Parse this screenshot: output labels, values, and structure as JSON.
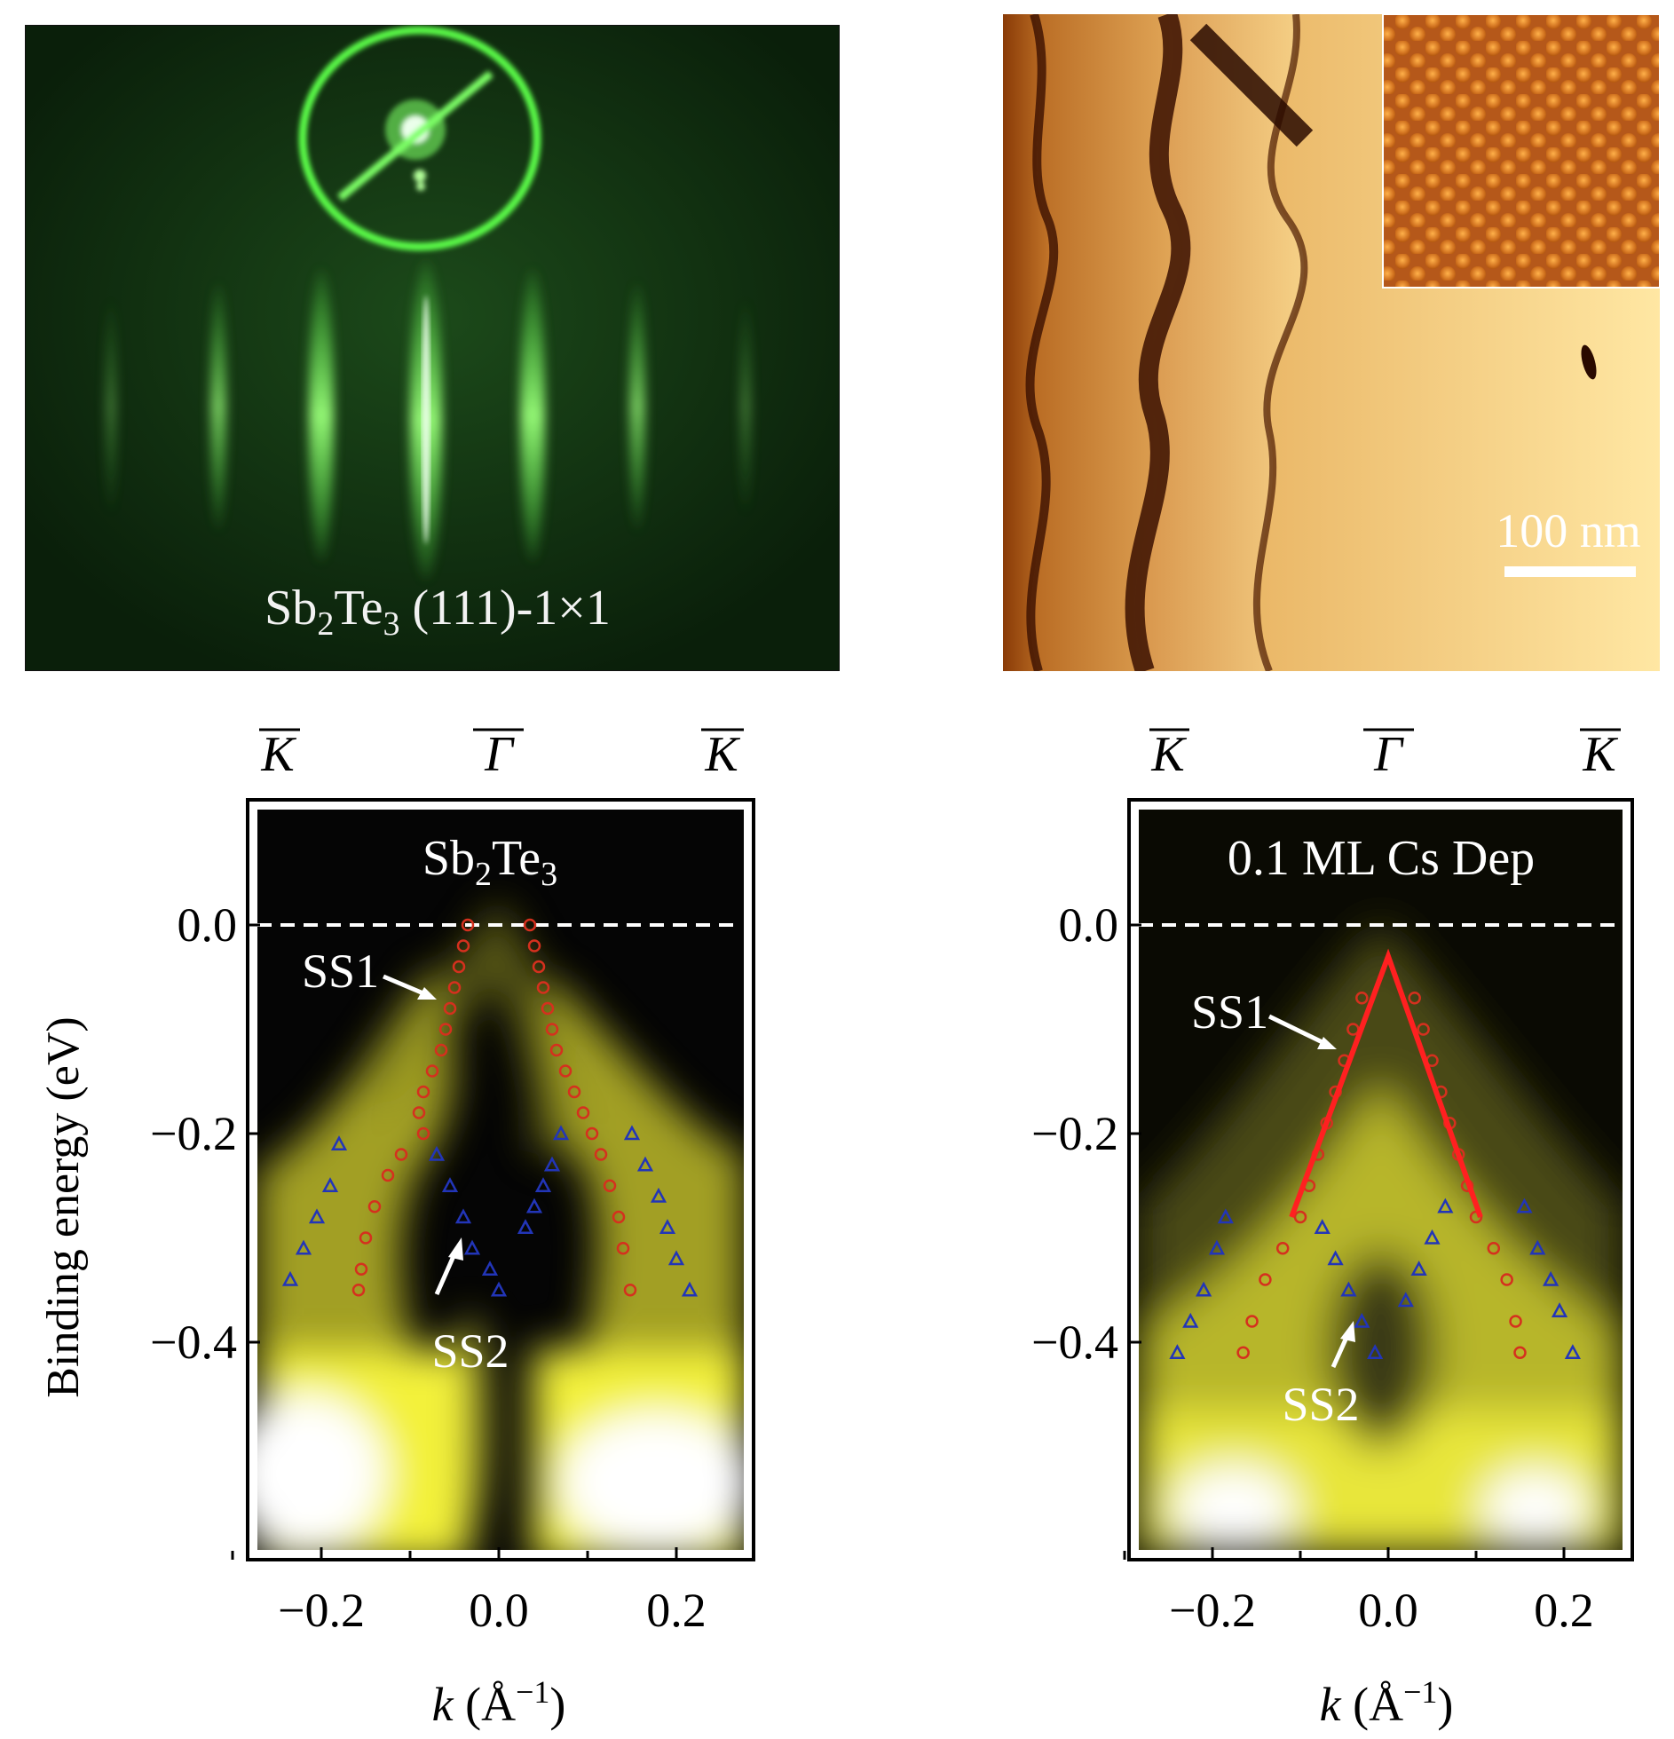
{
  "rheed": {
    "label_base": "Sb",
    "label_sub1": "2",
    "label_mid": "Te",
    "label_sub2": "3",
    "label_tail": " (111)-1×1"
  },
  "stm": {
    "scalebar_label": "100 nm"
  },
  "arpes_common": {
    "ylabel": "Binding energy (eV)",
    "xlabel_k": "k",
    "xlabel_units": " (Å",
    "xlabel_exp": "−1",
    "xlabel_close": ")",
    "kbar": "K",
    "gammabar": "Γ",
    "xticks": [
      "−0.2",
      "0.0",
      "0.2"
    ],
    "yticks": [
      "0.0",
      "−0.2",
      "−0.4"
    ],
    "ss1": "SS1",
    "ss2": "SS2"
  },
  "colors": {
    "rheed_bg": "#0e2a0e",
    "rheed_green": "#5cff4a",
    "stm_dark": "#3a0f00",
    "stm_mid": "#b5651d",
    "stm_light": "#ffe7a3",
    "arpes_dark": "#050505",
    "arpes_yellow": "#f3f13a",
    "ss1_color": "#d5301e",
    "ss2_color": "#2235b8",
    "line_color": "#ff2020"
  },
  "chart_data": [
    {
      "type": "scatter",
      "title": "Sb2Te3",
      "xlabel": "k (Å−1)",
      "ylabel": "Binding energy (eV)",
      "xlim": [
        -0.3,
        0.29
      ],
      "ylim": [
        -0.59,
        0.12
      ],
      "xticks": [
        -0.2,
        0.0,
        0.2
      ],
      "yticks": [
        0.0,
        -0.2,
        -0.4
      ],
      "fermi_level": 0.0,
      "series": [
        {
          "name": "SS1",
          "marker": "circle",
          "points": [
            [
              -0.035,
              0.0
            ],
            [
              -0.04,
              -0.02
            ],
            [
              -0.045,
              -0.04
            ],
            [
              -0.05,
              -0.06
            ],
            [
              -0.055,
              -0.08
            ],
            [
              -0.06,
              -0.1
            ],
            [
              -0.065,
              -0.12
            ],
            [
              -0.075,
              -0.14
            ],
            [
              -0.085,
              -0.16
            ],
            [
              -0.09,
              -0.18
            ],
            [
              -0.085,
              -0.2
            ],
            [
              -0.11,
              -0.22
            ],
            [
              -0.125,
              -0.24
            ],
            [
              -0.14,
              -0.27
            ],
            [
              -0.15,
              -0.3
            ],
            [
              -0.155,
              -0.33
            ],
            [
              -0.158,
              -0.35
            ],
            [
              0.035,
              0.0
            ],
            [
              0.04,
              -0.02
            ],
            [
              0.045,
              -0.04
            ],
            [
              0.05,
              -0.06
            ],
            [
              0.055,
              -0.08
            ],
            [
              0.06,
              -0.1
            ],
            [
              0.065,
              -0.12
            ],
            [
              0.075,
              -0.14
            ],
            [
              0.085,
              -0.16
            ],
            [
              0.095,
              -0.18
            ],
            [
              0.105,
              -0.2
            ],
            [
              0.115,
              -0.22
            ],
            [
              0.125,
              -0.25
            ],
            [
              0.135,
              -0.28
            ],
            [
              0.14,
              -0.31
            ],
            [
              0.148,
              -0.35
            ]
          ]
        },
        {
          "name": "SS2",
          "marker": "triangle",
          "points": [
            [
              -0.235,
              -0.34
            ],
            [
              -0.22,
              -0.31
            ],
            [
              -0.205,
              -0.28
            ],
            [
              -0.19,
              -0.25
            ],
            [
              -0.18,
              -0.21
            ],
            [
              -0.07,
              -0.22
            ],
            [
              -0.055,
              -0.25
            ],
            [
              -0.04,
              -0.28
            ],
            [
              -0.03,
              -0.31
            ],
            [
              -0.01,
              -0.33
            ],
            [
              0.0,
              -0.35
            ],
            [
              0.03,
              -0.29
            ],
            [
              0.04,
              -0.27
            ],
            [
              0.05,
              -0.25
            ],
            [
              0.06,
              -0.23
            ],
            [
              0.07,
              -0.2
            ],
            [
              0.15,
              -0.2
            ],
            [
              0.165,
              -0.23
            ],
            [
              0.18,
              -0.26
            ],
            [
              0.19,
              -0.29
            ],
            [
              0.2,
              -0.32
            ],
            [
              0.215,
              -0.35
            ]
          ]
        }
      ]
    },
    {
      "type": "scatter",
      "title": "0.1 ML Cs Dep",
      "xlabel": "k (Å−1)",
      "ylabel": "Binding energy (eV)",
      "xlim": [
        -0.3,
        0.29
      ],
      "ylim": [
        -0.59,
        0.12
      ],
      "xticks": [
        -0.2,
        0.0,
        0.2
      ],
      "yticks": [
        0.0,
        -0.2,
        -0.4
      ],
      "fermi_level": 0.0,
      "series": [
        {
          "name": "SS1",
          "marker": "circle",
          "points": [
            [
              -0.03,
              -0.07
            ],
            [
              -0.04,
              -0.1
            ],
            [
              -0.05,
              -0.13
            ],
            [
              -0.06,
              -0.16
            ],
            [
              -0.07,
              -0.19
            ],
            [
              -0.08,
              -0.22
            ],
            [
              -0.09,
              -0.25
            ],
            [
              -0.1,
              -0.28
            ],
            [
              -0.12,
              -0.31
            ],
            [
              -0.14,
              -0.34
            ],
            [
              -0.155,
              -0.38
            ],
            [
              -0.165,
              -0.41
            ],
            [
              0.03,
              -0.07
            ],
            [
              0.04,
              -0.1
            ],
            [
              0.05,
              -0.13
            ],
            [
              0.06,
              -0.16
            ],
            [
              0.07,
              -0.19
            ],
            [
              0.08,
              -0.22
            ],
            [
              0.09,
              -0.25
            ],
            [
              0.1,
              -0.28
            ],
            [
              0.12,
              -0.31
            ],
            [
              0.135,
              -0.34
            ],
            [
              0.145,
              -0.38
            ],
            [
              0.15,
              -0.41
            ]
          ]
        },
        {
          "name": "SS2",
          "marker": "triangle",
          "points": [
            [
              -0.24,
              -0.41
            ],
            [
              -0.225,
              -0.38
            ],
            [
              -0.21,
              -0.35
            ],
            [
              -0.195,
              -0.31
            ],
            [
              -0.185,
              -0.28
            ],
            [
              -0.075,
              -0.29
            ],
            [
              -0.06,
              -0.32
            ],
            [
              -0.045,
              -0.35
            ],
            [
              -0.03,
              -0.38
            ],
            [
              -0.015,
              -0.41
            ],
            [
              0.02,
              -0.36
            ],
            [
              0.035,
              -0.33
            ],
            [
              0.05,
              -0.3
            ],
            [
              0.065,
              -0.27
            ],
            [
              0.155,
              -0.27
            ],
            [
              0.17,
              -0.31
            ],
            [
              0.185,
              -0.34
            ],
            [
              0.195,
              -0.37
            ],
            [
              0.21,
              -0.41
            ]
          ]
        },
        {
          "name": "linear fit",
          "marker": "line",
          "points": [
            [
              -0.11,
              -0.28
            ],
            [
              0.0,
              -0.03
            ],
            [
              0.105,
              -0.28
            ]
          ]
        }
      ]
    }
  ]
}
